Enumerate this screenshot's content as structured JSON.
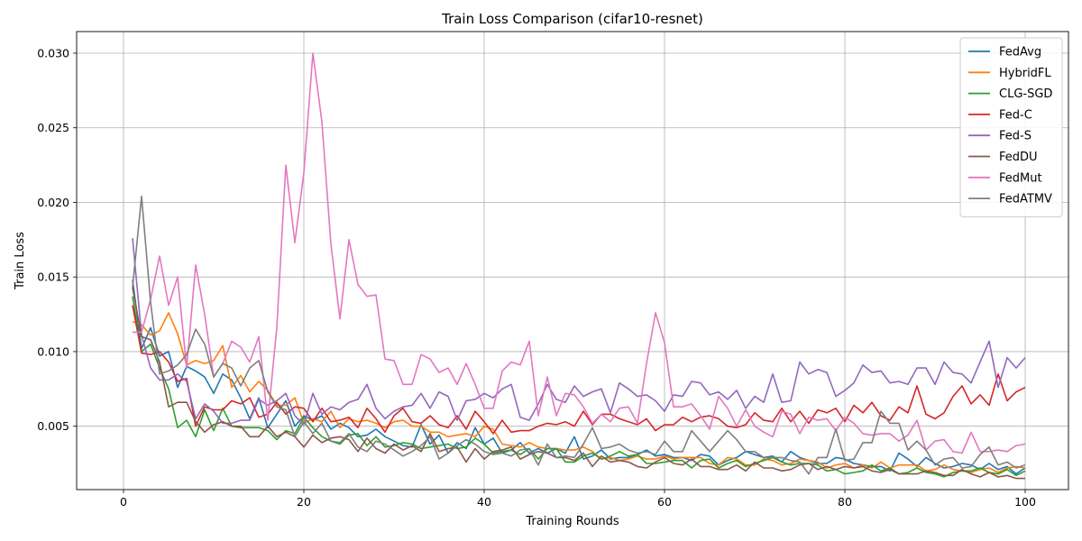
{
  "chart_data": {
    "type": "line",
    "title": "Train Loss Comparison (cifar10-resnet)",
    "xlabel": "Training Rounds",
    "ylabel": "Train Loss",
    "xlim": [
      -5.2,
      104.8
    ],
    "ylim": [
      0.00075,
      0.03145
    ],
    "xticks": [
      0,
      20,
      40,
      60,
      80,
      100
    ],
    "xtick_labels": [
      "0",
      "20",
      "40",
      "60",
      "80",
      "100"
    ],
    "yticks": [
      0.005,
      0.01,
      0.015,
      0.02,
      0.025,
      0.03
    ],
    "ytick_labels": [
      "0.005",
      "0.010",
      "0.015",
      "0.020",
      "0.025",
      "0.030"
    ],
    "grid": true,
    "legend_position": "top-right",
    "x": [
      1,
      2,
      3,
      4,
      5,
      6,
      7,
      8,
      9,
      10,
      11,
      12,
      13,
      14,
      15,
      16,
      17,
      18,
      19,
      20,
      21,
      22,
      23,
      24,
      25,
      26,
      27,
      28,
      29,
      30,
      31,
      32,
      33,
      34,
      35,
      36,
      37,
      38,
      39,
      40,
      41,
      42,
      43,
      44,
      45,
      46,
      47,
      48,
      49,
      50,
      51,
      52,
      53,
      54,
      55,
      56,
      57,
      58,
      59,
      60,
      61,
      62,
      63,
      64,
      65,
      66,
      67,
      68,
      69,
      70,
      71,
      72,
      73,
      74,
      75,
      76,
      77,
      78,
      79,
      80,
      81,
      82,
      83,
      84,
      85,
      86,
      87,
      88,
      89,
      90,
      91,
      92,
      93,
      94,
      95,
      96,
      97,
      98,
      99,
      100
    ],
    "series": [
      {
        "name": "FedAvg",
        "color": "#1f77b4",
        "values": [
          0.0148,
          0.0102,
          0.0116,
          0.0097,
          0.01,
          0.0076,
          0.009,
          0.0087,
          0.0083,
          0.0072,
          0.0085,
          0.0081,
          0.0069,
          0.0055,
          0.0069,
          0.0049,
          0.0058,
          0.0067,
          0.005,
          0.0057,
          0.0054,
          0.0057,
          0.0048,
          0.0052,
          0.0049,
          0.0043,
          0.0044,
          0.0048,
          0.0043,
          0.004,
          0.0037,
          0.0036,
          0.0051,
          0.0038,
          0.0044,
          0.0032,
          0.0039,
          0.0035,
          0.0049,
          0.0038,
          0.0042,
          0.0032,
          0.0034,
          0.0039,
          0.0032,
          0.0035,
          0.0032,
          0.0035,
          0.0032,
          0.0043,
          0.0028,
          0.003,
          0.0034,
          0.0028,
          0.0029,
          0.0029,
          0.0031,
          0.0034,
          0.003,
          0.0031,
          0.0029,
          0.0029,
          0.0027,
          0.0031,
          0.003,
          0.0024,
          0.0027,
          0.0029,
          0.0033,
          0.0031,
          0.0029,
          0.003,
          0.0026,
          0.0033,
          0.0029,
          0.0027,
          0.0025,
          0.0025,
          0.0029,
          0.0028,
          0.0025,
          0.0024,
          0.0023,
          0.0023,
          0.002,
          0.0032,
          0.0028,
          0.0023,
          0.0029,
          0.0025,
          0.0022,
          0.0023,
          0.0025,
          0.0024,
          0.0021,
          0.0025,
          0.0021,
          0.0023,
          0.0018,
          0.0022
        ]
      },
      {
        "name": "HybridFL",
        "color": "#ff7f0e",
        "values": [
          0.012,
          0.0118,
          0.0111,
          0.0114,
          0.0126,
          0.0112,
          0.0091,
          0.0094,
          0.0092,
          0.0094,
          0.0104,
          0.0076,
          0.0084,
          0.0073,
          0.008,
          0.0074,
          0.0064,
          0.0064,
          0.0069,
          0.0052,
          0.0055,
          0.0053,
          0.006,
          0.0049,
          0.0055,
          0.0053,
          0.0054,
          0.0052,
          0.0049,
          0.0053,
          0.0054,
          0.005,
          0.005,
          0.0046,
          0.0046,
          0.0043,
          0.0044,
          0.0045,
          0.0043,
          0.005,
          0.0048,
          0.0038,
          0.0037,
          0.0036,
          0.0039,
          0.0036,
          0.0035,
          0.0035,
          0.0034,
          0.0034,
          0.0036,
          0.0033,
          0.0028,
          0.0029,
          0.0027,
          0.0028,
          0.003,
          0.0028,
          0.0028,
          0.003,
          0.0028,
          0.0029,
          0.0029,
          0.0029,
          0.0025,
          0.0024,
          0.0029,
          0.0028,
          0.0024,
          0.0024,
          0.0028,
          0.0027,
          0.0024,
          0.0025,
          0.0028,
          0.0027,
          0.0026,
          0.0022,
          0.0024,
          0.0025,
          0.0022,
          0.0024,
          0.0022,
          0.0026,
          0.0022,
          0.0024,
          0.0024,
          0.0024,
          0.002,
          0.0021,
          0.0024,
          0.0021,
          0.002,
          0.0019,
          0.0021,
          0.0022,
          0.0019,
          0.0022,
          0.0023,
          0.0022
        ]
      },
      {
        "name": "CLG-SGD",
        "color": "#2ca02c",
        "values": [
          0.0137,
          0.01,
          0.0105,
          0.0089,
          0.0075,
          0.0049,
          0.0054,
          0.0043,
          0.0061,
          0.0047,
          0.0062,
          0.005,
          0.0049,
          0.0049,
          0.0049,
          0.0047,
          0.0041,
          0.0047,
          0.0045,
          0.0056,
          0.0049,
          0.0043,
          0.004,
          0.0038,
          0.0044,
          0.0045,
          0.0037,
          0.0043,
          0.0036,
          0.0037,
          0.0039,
          0.0038,
          0.0035,
          0.0036,
          0.0037,
          0.0038,
          0.0035,
          0.0036,
          0.0042,
          0.0038,
          0.0032,
          0.0033,
          0.0034,
          0.0031,
          0.0035,
          0.0028,
          0.0035,
          0.0035,
          0.0026,
          0.0026,
          0.003,
          0.0032,
          0.0028,
          0.003,
          0.0033,
          0.003,
          0.0031,
          0.0025,
          0.0025,
          0.0026,
          0.0027,
          0.0027,
          0.0022,
          0.0027,
          0.0028,
          0.0022,
          0.0025,
          0.0027,
          0.0023,
          0.0025,
          0.0027,
          0.0029,
          0.0026,
          0.0024,
          0.0025,
          0.0025,
          0.0024,
          0.002,
          0.0021,
          0.0018,
          0.0019,
          0.002,
          0.0024,
          0.002,
          0.0022,
          0.0018,
          0.0019,
          0.0022,
          0.0019,
          0.0018,
          0.0016,
          0.0019,
          0.002,
          0.002,
          0.0022,
          0.0019,
          0.0018,
          0.0021,
          0.0017,
          0.002
        ]
      },
      {
        "name": "Fed-C",
        "color": "#d62728",
        "values": [
          0.0131,
          0.0099,
          0.0098,
          0.01,
          0.0093,
          0.008,
          0.0082,
          0.005,
          0.0063,
          0.0061,
          0.0061,
          0.0067,
          0.0065,
          0.0069,
          0.0056,
          0.0058,
          0.0066,
          0.0058,
          0.0063,
          0.0062,
          0.0053,
          0.0062,
          0.0053,
          0.0054,
          0.0056,
          0.0049,
          0.0062,
          0.0055,
          0.0046,
          0.0057,
          0.0062,
          0.0053,
          0.0052,
          0.0057,
          0.0051,
          0.0049,
          0.0057,
          0.0048,
          0.006,
          0.0053,
          0.0045,
          0.0054,
          0.0046,
          0.0047,
          0.0047,
          0.005,
          0.0052,
          0.0051,
          0.0053,
          0.005,
          0.006,
          0.0051,
          0.0058,
          0.0058,
          0.0055,
          0.0053,
          0.0051,
          0.0055,
          0.0047,
          0.0051,
          0.0051,
          0.0056,
          0.0053,
          0.0056,
          0.0057,
          0.0055,
          0.005,
          0.0049,
          0.0051,
          0.0059,
          0.0054,
          0.0053,
          0.0062,
          0.0053,
          0.006,
          0.0052,
          0.0061,
          0.0059,
          0.0062,
          0.0053,
          0.0064,
          0.0059,
          0.0066,
          0.0057,
          0.0054,
          0.0063,
          0.0059,
          0.0077,
          0.0058,
          0.0055,
          0.0059,
          0.007,
          0.0077,
          0.0065,
          0.0071,
          0.0064,
          0.0085,
          0.0067,
          0.0073,
          0.0076
        ]
      },
      {
        "name": "Fed-S",
        "color": "#9467bd",
        "values": [
          0.0176,
          0.0111,
          0.0089,
          0.0081,
          0.0081,
          0.0085,
          0.008,
          0.0055,
          0.0065,
          0.006,
          0.0052,
          0.0052,
          0.0054,
          0.0054,
          0.0068,
          0.0064,
          0.0067,
          0.0072,
          0.0057,
          0.0051,
          0.0072,
          0.0058,
          0.0063,
          0.0061,
          0.0066,
          0.0068,
          0.0078,
          0.0062,
          0.0055,
          0.006,
          0.0063,
          0.0064,
          0.0072,
          0.0062,
          0.0073,
          0.007,
          0.0054,
          0.0067,
          0.0068,
          0.0072,
          0.0069,
          0.0075,
          0.0078,
          0.0056,
          0.0054,
          0.0065,
          0.0078,
          0.0068,
          0.0066,
          0.0077,
          0.007,
          0.0073,
          0.0075,
          0.0059,
          0.0079,
          0.0075,
          0.007,
          0.0071,
          0.0067,
          0.006,
          0.0071,
          0.007,
          0.008,
          0.0079,
          0.0071,
          0.0073,
          0.0068,
          0.0074,
          0.0062,
          0.007,
          0.0066,
          0.0085,
          0.0066,
          0.0067,
          0.0093,
          0.0085,
          0.0088,
          0.0086,
          0.007,
          0.0074,
          0.0079,
          0.0091,
          0.0086,
          0.0087,
          0.0079,
          0.008,
          0.0078,
          0.0089,
          0.0089,
          0.0078,
          0.0093,
          0.0086,
          0.0085,
          0.0079,
          0.0093,
          0.0107,
          0.0076,
          0.0096,
          0.0089,
          0.0096
        ]
      },
      {
        "name": "FedDU",
        "color": "#8c564b",
        "values": [
          0.0143,
          0.011,
          0.0108,
          0.0093,
          0.0063,
          0.0066,
          0.0066,
          0.0053,
          0.0046,
          0.0051,
          0.0053,
          0.005,
          0.005,
          0.0043,
          0.0043,
          0.005,
          0.0043,
          0.0046,
          0.0043,
          0.0036,
          0.0044,
          0.0039,
          0.0042,
          0.0043,
          0.0041,
          0.0033,
          0.0042,
          0.0035,
          0.0032,
          0.0038,
          0.0034,
          0.0037,
          0.0033,
          0.0045,
          0.0033,
          0.0035,
          0.0036,
          0.0026,
          0.0035,
          0.0028,
          0.0033,
          0.0034,
          0.0036,
          0.0028,
          0.0031,
          0.0033,
          0.0032,
          0.0029,
          0.0029,
          0.0027,
          0.0032,
          0.0023,
          0.003,
          0.0026,
          0.0027,
          0.0026,
          0.0023,
          0.0022,
          0.0026,
          0.0029,
          0.0025,
          0.0024,
          0.0028,
          0.0023,
          0.0023,
          0.0021,
          0.0021,
          0.0024,
          0.002,
          0.0026,
          0.0022,
          0.0022,
          0.002,
          0.0021,
          0.0024,
          0.0025,
          0.0021,
          0.0023,
          0.0021,
          0.0023,
          0.0022,
          0.0023,
          0.002,
          0.0019,
          0.0021,
          0.0018,
          0.0018,
          0.0018,
          0.002,
          0.0019,
          0.0017,
          0.0017,
          0.0021,
          0.0018,
          0.0016,
          0.0019,
          0.0016,
          0.0017,
          0.0015,
          0.0015
        ]
      },
      {
        "name": "FedMut",
        "color": "#e377c2",
        "values": [
          0.0113,
          0.0113,
          0.0135,
          0.0164,
          0.0131,
          0.015,
          0.0089,
          0.0158,
          0.0125,
          0.0083,
          0.0092,
          0.0107,
          0.0103,
          0.0093,
          0.011,
          0.0054,
          0.0116,
          0.0225,
          0.0173,
          0.022,
          0.03,
          0.0254,
          0.0172,
          0.0122,
          0.0175,
          0.0145,
          0.0137,
          0.0138,
          0.0095,
          0.0094,
          0.0078,
          0.0078,
          0.0098,
          0.0095,
          0.0086,
          0.0089,
          0.0078,
          0.0092,
          0.0078,
          0.0062,
          0.0062,
          0.0087,
          0.0093,
          0.0091,
          0.0107,
          0.0057,
          0.0083,
          0.0057,
          0.0072,
          0.0071,
          0.0063,
          0.0052,
          0.0058,
          0.0053,
          0.0062,
          0.0063,
          0.0052,
          0.0092,
          0.0126,
          0.0106,
          0.0063,
          0.0063,
          0.0065,
          0.0057,
          0.0048,
          0.007,
          0.0062,
          0.005,
          0.0061,
          0.005,
          0.0046,
          0.0043,
          0.006,
          0.0058,
          0.0045,
          0.0056,
          0.0054,
          0.0055,
          0.0047,
          0.0056,
          0.0052,
          0.0045,
          0.0044,
          0.0045,
          0.0045,
          0.004,
          0.0044,
          0.0054,
          0.0034,
          0.004,
          0.0041,
          0.0033,
          0.0032,
          0.0046,
          0.0033,
          0.0033,
          0.0034,
          0.0033,
          0.0037,
          0.0038
        ]
      },
      {
        "name": "FedATMV",
        "color": "#7f7f7f",
        "values": [
          0.0143,
          0.0204,
          0.0133,
          0.0085,
          0.0087,
          0.0091,
          0.0098,
          0.0115,
          0.0105,
          0.0083,
          0.0092,
          0.0089,
          0.0077,
          0.0089,
          0.0094,
          0.0073,
          0.0063,
          0.0061,
          0.0043,
          0.0053,
          0.0045,
          0.0052,
          0.004,
          0.0039,
          0.0045,
          0.0036,
          0.0033,
          0.004,
          0.0038,
          0.0034,
          0.003,
          0.0033,
          0.0037,
          0.0043,
          0.0028,
          0.0032,
          0.0037,
          0.0041,
          0.0038,
          0.0033,
          0.0031,
          0.0032,
          0.003,
          0.0034,
          0.0035,
          0.0024,
          0.0038,
          0.0029,
          0.003,
          0.0029,
          0.0038,
          0.0049,
          0.0035,
          0.0036,
          0.0038,
          0.0034,
          0.0032,
          0.0033,
          0.0031,
          0.004,
          0.0033,
          0.0033,
          0.0047,
          0.004,
          0.0033,
          0.004,
          0.0047,
          0.0041,
          0.0033,
          0.0033,
          0.0029,
          0.0029,
          0.0029,
          0.0027,
          0.0026,
          0.0018,
          0.0029,
          0.0029,
          0.0048,
          0.0027,
          0.0028,
          0.0039,
          0.0039,
          0.006,
          0.0052,
          0.0052,
          0.0034,
          0.004,
          0.0034,
          0.0024,
          0.0028,
          0.0029,
          0.0022,
          0.0023,
          0.0031,
          0.0036,
          0.0024,
          0.0026,
          0.0022,
          0.0024
        ]
      }
    ]
  }
}
